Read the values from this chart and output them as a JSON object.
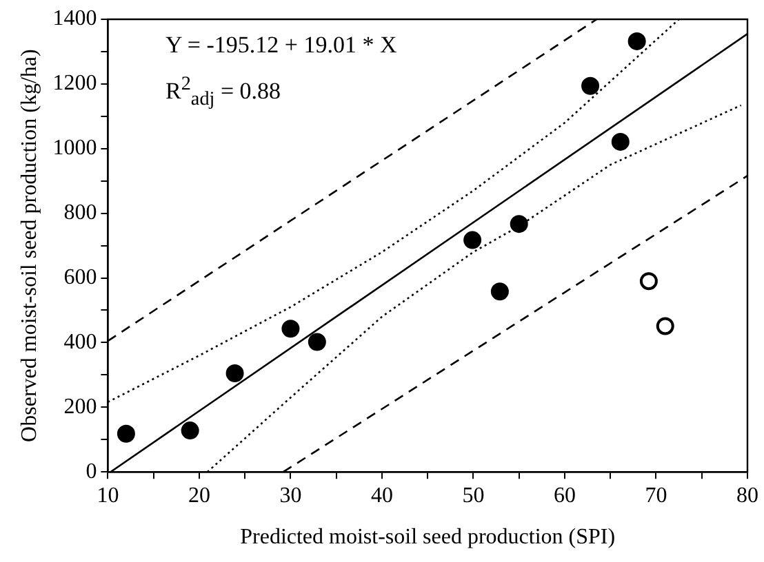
{
  "chart_data": {
    "type": "scatter",
    "xlabel": "Predicted moist-soil seed production (SPI)",
    "ylabel": "Observed moist-soil seed production (kg/ha)",
    "annotations": [
      "Y = -195.12 + 19.01 * X",
      "R$^{2}$$_{adj}$ = 0.88"
    ],
    "xlim": [
      10,
      80
    ],
    "ylim": [
      0,
      1400
    ],
    "xticks": [
      10,
      {
        "value": 15,
        "label": null
      },
      20,
      {
        "value": 25,
        "label": null
      },
      30,
      {
        "value": 35,
        "label": null
      },
      40,
      {
        "value": 45,
        "label": null
      },
      50,
      {
        "value": 55,
        "label": null
      },
      60,
      {
        "value": 65,
        "label": null
      },
      70,
      {
        "value": 75,
        "label": null
      },
      80
    ],
    "yticks": [
      0,
      {
        "value": 100,
        "label": null
      },
      200,
      {
        "value": 300,
        "label": null
      },
      400,
      {
        "value": 500,
        "label": null
      },
      600,
      {
        "value": 700,
        "label": null
      },
      800,
      {
        "value": 900,
        "label": null
      },
      1000,
      {
        "value": 1100,
        "label": null
      },
      1200,
      {
        "value": 1300,
        "label": null
      },
      1400
    ],
    "grid": false,
    "legend": false,
    "marker": "circle",
    "series": [
      {
        "color": "#000000",
        "x": [
          12.0,
          19.0,
          23.9,
          30.0,
          32.9,
          49.9,
          52.9,
          55.0,
          62.8,
          66.1,
          67.9
        ],
        "values": [
          118,
          128,
          305,
          443,
          402,
          717,
          558,
          767,
          1194,
          1021,
          1332
        ]
      },
      {
        "color": "#ffffff",
        "x": [
          69.2,
          71.0
        ],
        "values": [
          590,
          451
        ]
      },
      {
        "type": "line",
        "color": "#000000",
        "line_style": "solid",
        "marker": "none",
        "x": [
          10.3,
          80
        ],
        "values": [
          0,
          1355
        ]
      },
      {
        "type": "line",
        "color": "#000000",
        "line_style": "dotted",
        "marker": "none",
        "x": [
          10,
          20,
          30,
          40,
          50,
          60,
          72.5
        ],
        "values": [
          216,
          360,
          510,
          680,
          870,
          1080,
          1400
        ]
      },
      {
        "type": "line",
        "color": "#000000",
        "line_style": "dotted",
        "marker": "none",
        "x": [
          20.9,
          30,
          40,
          50,
          55,
          65,
          79.3
        ],
        "values": [
          0,
          230,
          480,
          680,
          760,
          950,
          1134
        ]
      },
      {
        "type": "line",
        "color": "#000000",
        "line_style": "dashed",
        "marker": "none",
        "x": [
          10,
          63.5
        ],
        "values": [
          405,
          1400
        ]
      },
      {
        "type": "line",
        "color": "#000000",
        "line_style": "dashed",
        "marker": "none",
        "x": [
          29.2,
          80
        ],
        "values": [
          0,
          916
        ]
      }
    ]
  }
}
